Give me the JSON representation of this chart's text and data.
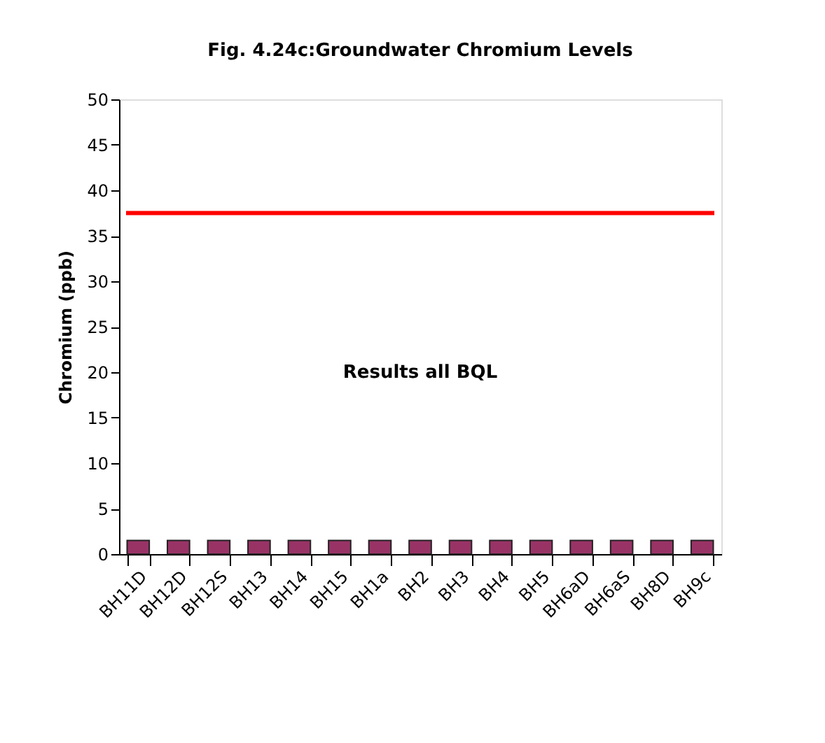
{
  "chart_data": {
    "type": "bar",
    "title": "Fig. 4.24c:Groundwater Chromium Levels",
    "ylabel": "Chromium (ppb)",
    "categories": [
      "BH11D",
      "BH12D",
      "BH12S",
      "BH13",
      "BH14",
      "BH15",
      "BH1a",
      "BH2",
      "BH3",
      "BH4",
      "BH5",
      "BH6aD",
      "BH6aS",
      "BH8D",
      "BH9c"
    ],
    "values": [
      1.5,
      1.5,
      1.5,
      1.5,
      1.5,
      1.5,
      1.5,
      1.5,
      1.5,
      1.5,
      1.5,
      1.5,
      1.5,
      1.5,
      1.5
    ],
    "color": "#993366",
    "ylim": [
      0,
      50
    ],
    "yticks": [
      0,
      5,
      10,
      15,
      20,
      25,
      30,
      35,
      40,
      45,
      50
    ],
    "ref_lines": [
      {
        "axis": "y",
        "value": 37.5,
        "color": "#ff0000"
      }
    ],
    "annotations": [
      "Results all BQL"
    ],
    "grid": false
  }
}
